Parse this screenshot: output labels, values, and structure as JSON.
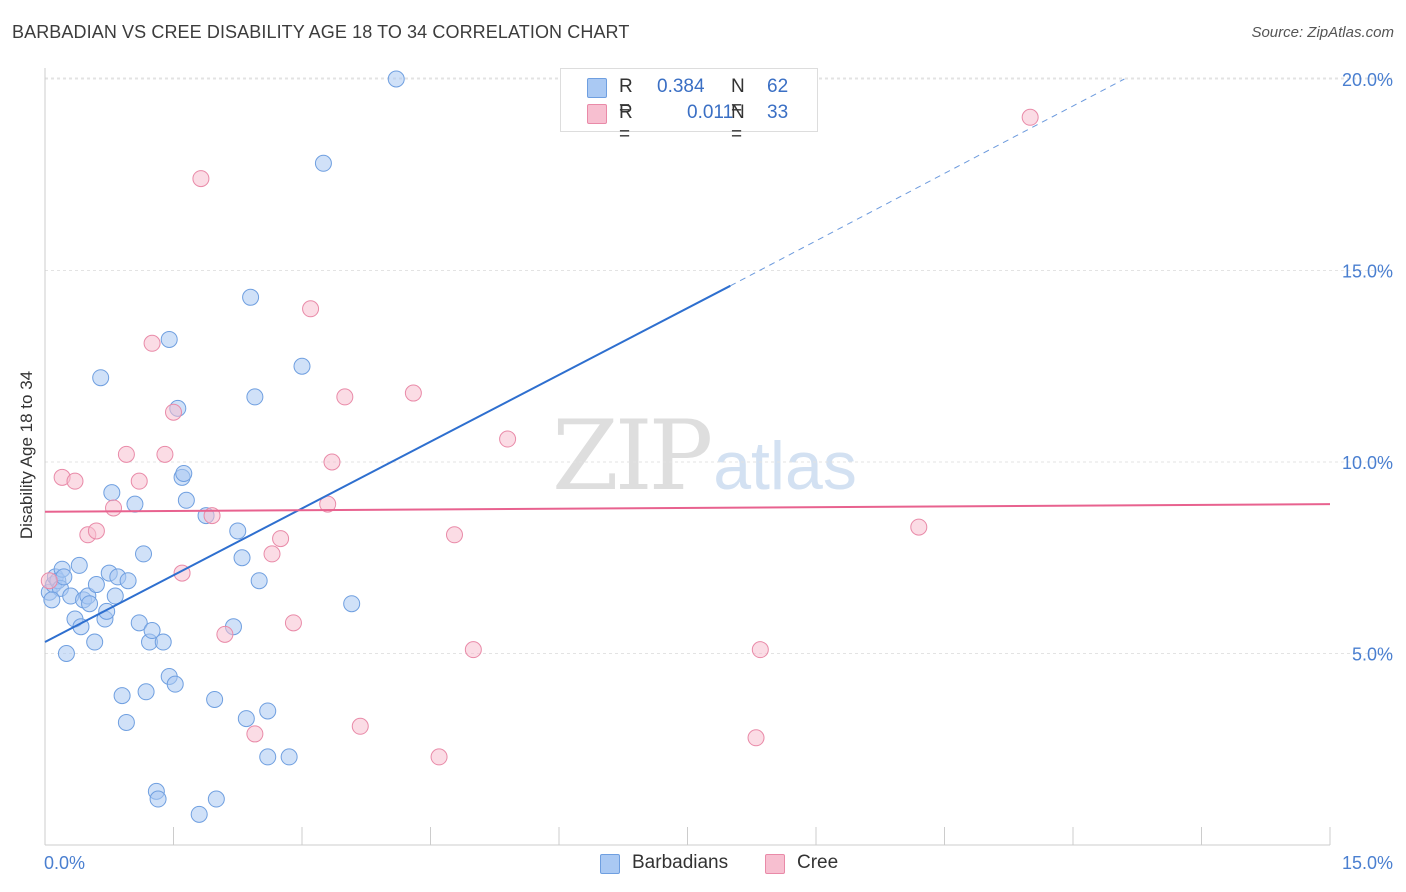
{
  "title": "BARBADIAN VS CREE DISABILITY AGE 18 TO 34 CORRELATION CHART",
  "source": "Source: ZipAtlas.com",
  "watermark": {
    "zip": "ZIP",
    "atlas": "atlas"
  },
  "legend": {
    "r_label": "R =",
    "n_label": "N =",
    "rows": [
      {
        "r": "0.384",
        "n": "62",
        "color": "#aac9f3"
      },
      {
        "r": "0.011",
        "n": "33",
        "color": "#f7bfd0"
      }
    ]
  },
  "bottom_legend": [
    {
      "label": "Barbadians",
      "color": "#aac9f3"
    },
    {
      "label": "Cree",
      "color": "#f7bfd0"
    }
  ],
  "colors": {
    "barbadian_fill": "#aac9f3",
    "barbadian_stroke": "#6f9fe0",
    "barbadian_line": "#2e6fcf",
    "cree_fill": "#f7bfd0",
    "cree_stroke": "#e98aa8",
    "cree_line": "#e8628f",
    "tick_label": "#4a7fd0",
    "grid": "#e3e3e3",
    "axis": "#cccccc"
  },
  "chart_data": {
    "type": "scatter",
    "title": "BARBADIAN VS CREE DISABILITY AGE 18 TO 34 CORRELATION CHART",
    "xlabel": "",
    "ylabel": "Disability Age 18 to 34",
    "xlim": [
      0,
      15
    ],
    "ylim": [
      0,
      20.5
    ],
    "x_tick_labels": [
      "0.0%",
      "15.0%"
    ],
    "y_ticks": [
      5,
      10,
      15,
      20
    ],
    "y_tick_labels": [
      "5.0%",
      "10.0%",
      "15.0%",
      "20.0%"
    ],
    "grid": true,
    "series": [
      {
        "name": "Barbadians",
        "r": 0.384,
        "n": 62,
        "trend": {
          "x0": 0.0,
          "y0": 5.3,
          "x1": 8.0,
          "y1": 14.6,
          "dashed_to_x": 12.6,
          "dashed_to_y": 20.0
        },
        "points": [
          [
            0.05,
            6.6
          ],
          [
            0.1,
            6.8
          ],
          [
            0.12,
            7.0
          ],
          [
            0.15,
            6.9
          ],
          [
            0.18,
            6.7
          ],
          [
            0.2,
            7.2
          ],
          [
            0.22,
            7.0
          ],
          [
            0.25,
            5.0
          ],
          [
            0.3,
            6.5
          ],
          [
            0.35,
            5.9
          ],
          [
            0.4,
            7.3
          ],
          [
            0.42,
            5.7
          ],
          [
            0.45,
            6.4
          ],
          [
            0.5,
            6.5
          ],
          [
            0.52,
            6.3
          ],
          [
            0.58,
            5.3
          ],
          [
            0.6,
            6.8
          ],
          [
            0.65,
            12.2
          ],
          [
            0.7,
            5.9
          ],
          [
            0.72,
            6.1
          ],
          [
            0.75,
            7.1
          ],
          [
            0.78,
            9.2
          ],
          [
            0.82,
            6.5
          ],
          [
            0.85,
            7.0
          ],
          [
            0.9,
            3.9
          ],
          [
            0.95,
            3.2
          ],
          [
            0.97,
            6.9
          ],
          [
            1.05,
            8.9
          ],
          [
            1.1,
            5.8
          ],
          [
            1.15,
            7.6
          ],
          [
            1.18,
            4.0
          ],
          [
            1.22,
            5.3
          ],
          [
            1.25,
            5.6
          ],
          [
            1.3,
            1.4
          ],
          [
            1.32,
            1.2
          ],
          [
            1.38,
            5.3
          ],
          [
            1.45,
            4.4
          ],
          [
            1.45,
            13.2
          ],
          [
            1.52,
            4.2
          ],
          [
            1.55,
            11.4
          ],
          [
            1.6,
            9.6
          ],
          [
            1.62,
            9.7
          ],
          [
            1.65,
            9.0
          ],
          [
            1.8,
            0.8
          ],
          [
            1.88,
            8.6
          ],
          [
            1.98,
            3.8
          ],
          [
            2.0,
            1.2
          ],
          [
            2.2,
            5.7
          ],
          [
            2.25,
            8.2
          ],
          [
            2.3,
            7.5
          ],
          [
            2.35,
            3.3
          ],
          [
            2.4,
            14.3
          ],
          [
            2.45,
            11.7
          ],
          [
            2.5,
            6.9
          ],
          [
            2.6,
            3.5
          ],
          [
            2.6,
            2.3
          ],
          [
            3.0,
            12.5
          ],
          [
            3.25,
            17.8
          ],
          [
            3.58,
            6.3
          ],
          [
            4.1,
            20.0
          ],
          [
            2.85,
            2.3
          ],
          [
            0.08,
            6.4
          ]
        ]
      },
      {
        "name": "Cree",
        "r": 0.011,
        "n": 33,
        "trend": {
          "x0": 0.0,
          "y0": 8.7,
          "x1": 15.0,
          "y1": 8.9
        },
        "points": [
          [
            0.05,
            6.9
          ],
          [
            0.2,
            9.6
          ],
          [
            0.35,
            9.5
          ],
          [
            0.5,
            8.1
          ],
          [
            0.6,
            8.2
          ],
          [
            0.8,
            8.8
          ],
          [
            0.95,
            10.2
          ],
          [
            1.1,
            9.5
          ],
          [
            1.25,
            13.1
          ],
          [
            1.4,
            10.2
          ],
          [
            1.5,
            11.3
          ],
          [
            1.6,
            7.1
          ],
          [
            1.82,
            17.4
          ],
          [
            1.95,
            8.6
          ],
          [
            2.1,
            5.5
          ],
          [
            2.45,
            2.9
          ],
          [
            2.65,
            7.6
          ],
          [
            2.75,
            8.0
          ],
          [
            2.9,
            5.8
          ],
          [
            3.1,
            14.0
          ],
          [
            3.3,
            8.9
          ],
          [
            3.35,
            10.0
          ],
          [
            3.5,
            11.7
          ],
          [
            3.68,
            3.1
          ],
          [
            4.3,
            11.8
          ],
          [
            4.6,
            2.3
          ],
          [
            4.78,
            8.1
          ],
          [
            5.0,
            5.1
          ],
          [
            5.4,
            10.6
          ],
          [
            8.3,
            2.8
          ],
          [
            8.35,
            5.1
          ],
          [
            10.2,
            8.3
          ],
          [
            11.5,
            19.0
          ]
        ]
      }
    ]
  }
}
